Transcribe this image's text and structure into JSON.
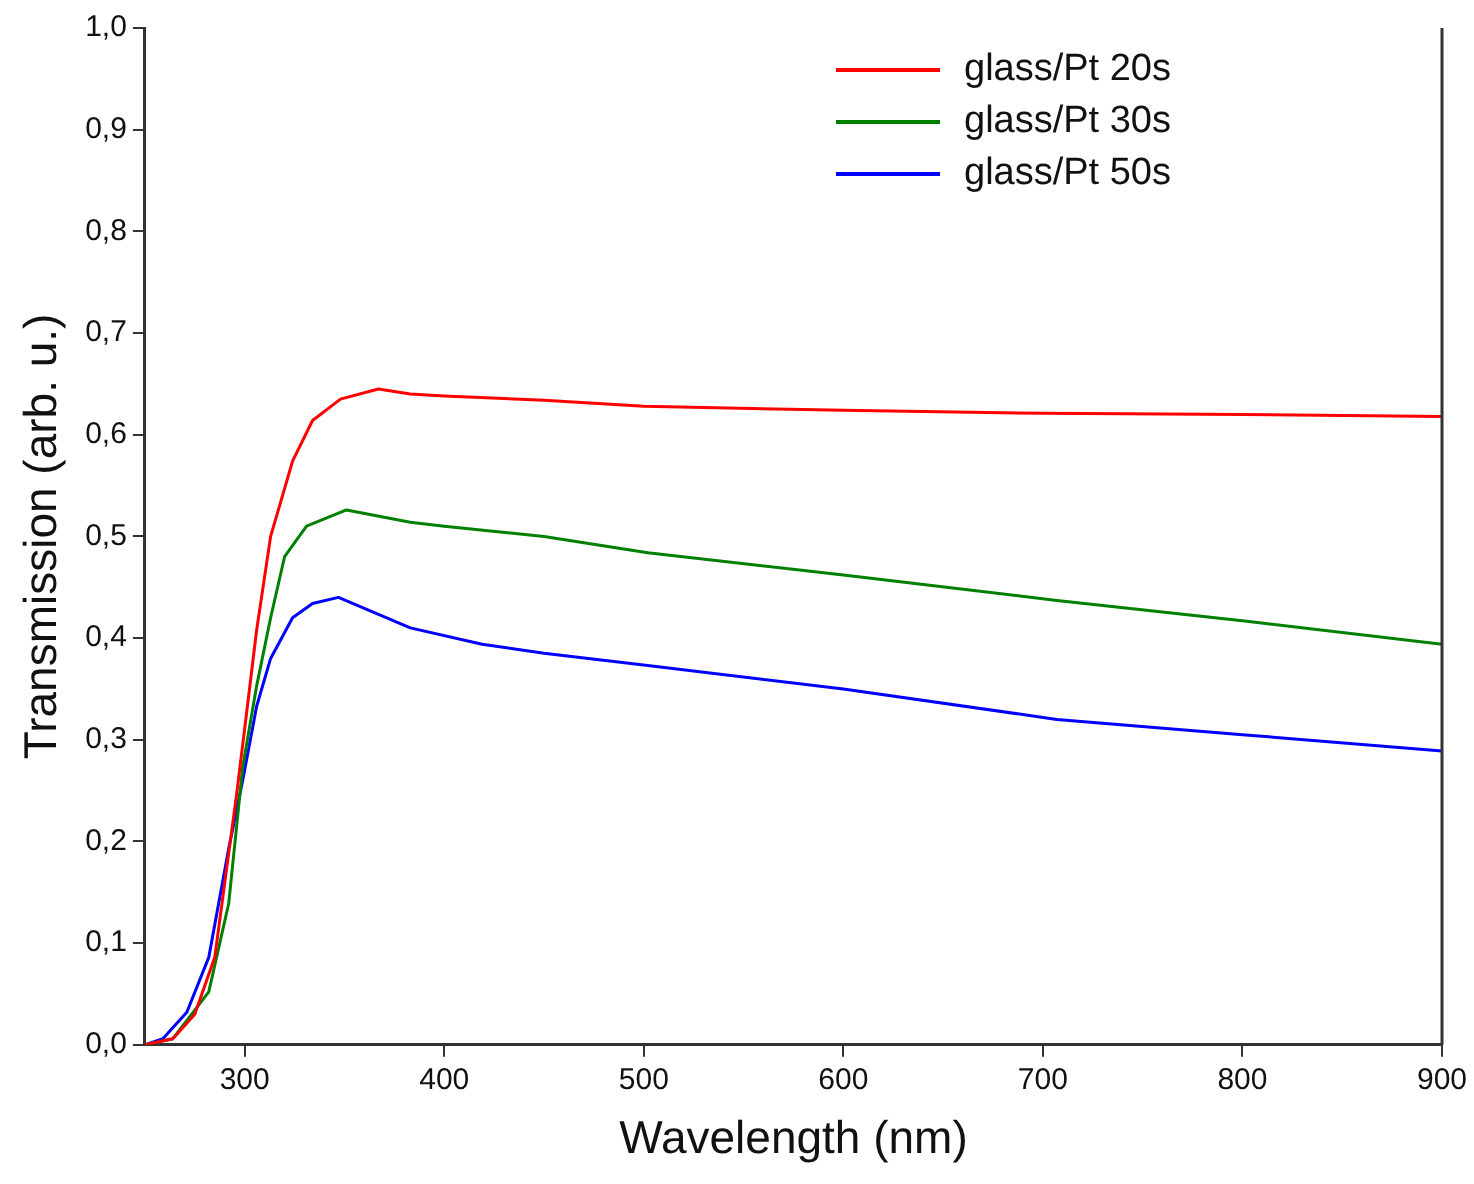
{
  "chart_data": {
    "type": "line",
    "xlabel": "Wavelength (nm)",
    "ylabel": "Transmission (arb. u.)",
    "xlim": [
      250,
      900
    ],
    "xticks": [
      300,
      400,
      500,
      600,
      700,
      800,
      900
    ],
    "ylim": [
      0,
      1
    ],
    "yticks": [
      {
        "value": 0,
        "label": "0,0"
      },
      {
        "value": 0.1,
        "label": "0,1"
      },
      {
        "value": 0.2,
        "label": "0,2"
      },
      {
        "value": 0.3,
        "label": "0,3"
      },
      {
        "value": 0.4,
        "label": "0,4"
      },
      {
        "value": 0.5,
        "label": "0,5"
      },
      {
        "value": 0.6,
        "label": "0,6"
      },
      {
        "value": 0.7,
        "label": "0,7"
      },
      {
        "value": 0.8,
        "label": "0,8"
      },
      {
        "value": 0.9,
        "label": "0,9"
      },
      {
        "value": 1,
        "label": "1,0"
      }
    ],
    "grid": false,
    "legend": "top right",
    "marker": "none",
    "line_style": "solid",
    "series": [
      {
        "name": "glass/Pt 20s",
        "color": "#ff0000",
        "x": [
          250,
          264,
          275,
          285,
          296,
          301,
          306,
          313,
          324,
          334,
          348,
          367,
          383,
          400,
          450,
          500,
          600,
          700,
          800,
          900
        ],
        "values": [
          0,
          0.006,
          0.03,
          0.086,
          0.247,
          0.327,
          0.408,
          0.5,
          0.574,
          0.614,
          0.635,
          0.645,
          0.64,
          0.638,
          0.634,
          0.628,
          0.624,
          0.621,
          0.62,
          0.618
        ]
      },
      {
        "name": "glass/Pt 30s",
        "color": "#008000",
        "x": [
          250,
          264,
          282,
          292,
          299,
          306,
          313,
          320,
          331,
          351,
          383,
          400,
          450,
          502,
          600,
          707,
          800,
          900
        ],
        "values": [
          0,
          0.006,
          0.052,
          0.139,
          0.273,
          0.353,
          0.42,
          0.48,
          0.51,
          0.526,
          0.514,
          0.51,
          0.5,
          0.484,
          0.462,
          0.437,
          0.417,
          0.394
        ]
      },
      {
        "name": "glass/Pt 50s",
        "color": "#0000ff",
        "x": [
          250,
          259,
          271,
          282,
          292,
          299,
          306,
          313,
          324,
          334,
          347,
          383,
          419,
          450,
          502,
          600,
          707,
          800,
          900
        ],
        "values": [
          0,
          0.006,
          0.032,
          0.086,
          0.193,
          0.26,
          0.333,
          0.38,
          0.42,
          0.434,
          0.44,
          0.41,
          0.394,
          0.385,
          0.373,
          0.35,
          0.32,
          0.305,
          0.289
        ]
      }
    ]
  }
}
